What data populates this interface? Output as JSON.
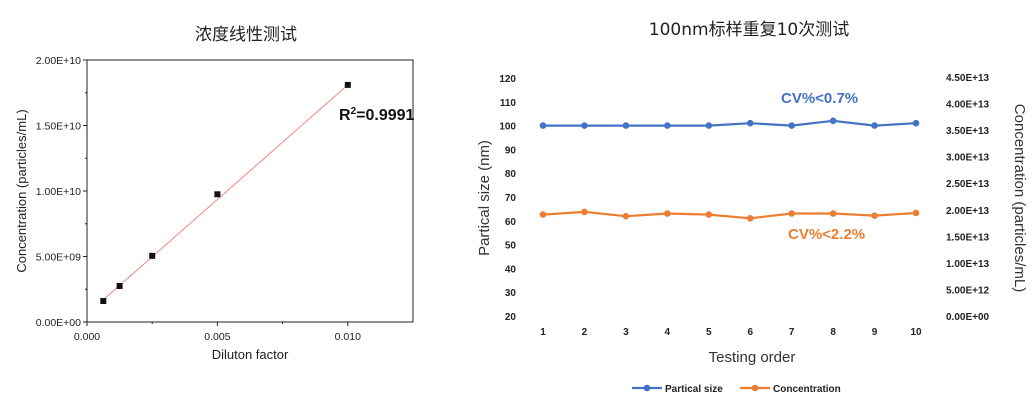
{
  "chart_data": [
    {
      "type": "scatter",
      "title": "浓度线性测试",
      "xlabel": "Diluton factor",
      "ylabel": "Concentration (particles/mL)",
      "xlim": [
        0,
        0.0125
      ],
      "ylim": [
        0,
        20000000000
      ],
      "x_ticks": [
        "0.000",
        "0.005",
        "0.010"
      ],
      "y_ticks": [
        "0.00E+00",
        "5.00E+09",
        "1.00E+10",
        "1.50E+10",
        "2.00E+10"
      ],
      "x": [
        0.000625,
        0.00125,
        0.0025,
        0.005,
        0.01
      ],
      "y": [
        1600000000,
        2750000000,
        5050000000,
        9750000000,
        18100000000
      ],
      "fit_line": {
        "x": [
          0.000625,
          0.01
        ],
        "y": [
          1700000000,
          18100000000
        ],
        "color": "#f08a80"
      },
      "marker_color": "#111111",
      "annotation": {
        "prefix": "R",
        "sup": "2",
        "value": "=0.9991"
      },
      "grid": false
    },
    {
      "type": "line",
      "title": "100nm标样重复10次测试",
      "xlabel": "Testing order",
      "ylabel": "Partical size  (nm)",
      "y2label": "Concentration (particles/mL)",
      "categories": [
        "1",
        "2",
        "3",
        "4",
        "5",
        "6",
        "7",
        "8",
        "9",
        "10"
      ],
      "ylim": [
        20,
        120
      ],
      "y_ticks": [
        "20",
        "30",
        "40",
        "50",
        "60",
        "70",
        "80",
        "90",
        "100",
        "110",
        "120"
      ],
      "y2lim": [
        0,
        45000000000000
      ],
      "y2_ticks": [
        "0.00E+00",
        "5.00E+12",
        "1.00E+13",
        "1.50E+13",
        "2.00E+13",
        "2.50E+13",
        "3.00E+13",
        "3.50E+13",
        "4.00E+13",
        "4.50E+13"
      ],
      "series": [
        {
          "name": "Partical size",
          "axis": "left",
          "color": "#4472c4",
          "values": [
            100,
            100,
            100,
            100,
            100,
            101,
            100,
            102,
            100,
            101
          ]
        },
        {
          "name": "Concentration",
          "axis": "right",
          "color": "#ed7d31",
          "values": [
            19100000000000,
            19600000000000,
            18800000000000,
            19300000000000,
            19100000000000,
            18400000000000,
            19300000000000,
            19300000000000,
            18900000000000,
            19400000000000
          ]
        }
      ],
      "annotations": [
        {
          "text": "CV%<0.7%",
          "color": "#4472c4"
        },
        {
          "text": "CV%<2.2%",
          "color": "#ed7d31"
        }
      ],
      "legend_position": "bottom",
      "grid": false
    }
  ]
}
